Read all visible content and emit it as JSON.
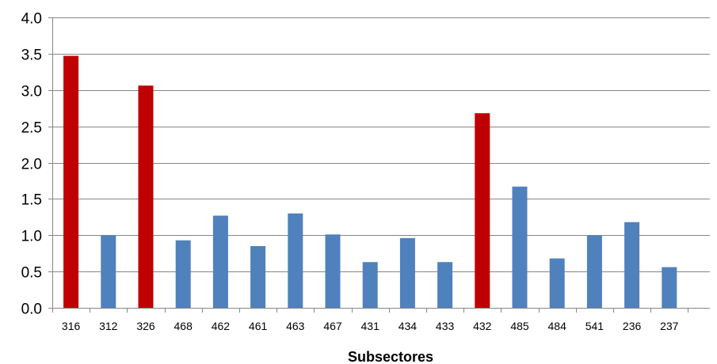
{
  "chart_data": {
    "type": "bar",
    "title": "",
    "xlabel": "Subsectores",
    "ylabel": "",
    "categories": [
      "316",
      "312",
      "326",
      "468",
      "462",
      "461",
      "463",
      "467",
      "431",
      "434",
      "433",
      "432",
      "485",
      "484",
      "541",
      "236",
      "237"
    ],
    "values": [
      3.47,
      1.0,
      3.06,
      0.93,
      1.27,
      0.85,
      1.3,
      1.01,
      0.63,
      0.96,
      0.63,
      2.68,
      1.67,
      0.68,
      1.0,
      1.18,
      0.56
    ],
    "bar_colors": [
      "#C00000",
      "#4F81BD",
      "#C00000",
      "#4F81BD",
      "#4F81BD",
      "#4F81BD",
      "#4F81BD",
      "#4F81BD",
      "#4F81BD",
      "#4F81BD",
      "#4F81BD",
      "#C00000",
      "#4F81BD",
      "#4F81BD",
      "#4F81BD",
      "#4F81BD",
      "#4F81BD"
    ],
    "ylim": [
      0,
      4.0
    ],
    "yticks": [
      "0.0",
      "0.5",
      "1.0",
      "1.5",
      "2.0",
      "2.5",
      "3.0",
      "3.5",
      "4.0"
    ],
    "grid": true,
    "legend": "none",
    "colors": {
      "highlight": "#C00000",
      "default": "#4F81BD",
      "grid": "#868686",
      "axis": "#868686"
    }
  }
}
